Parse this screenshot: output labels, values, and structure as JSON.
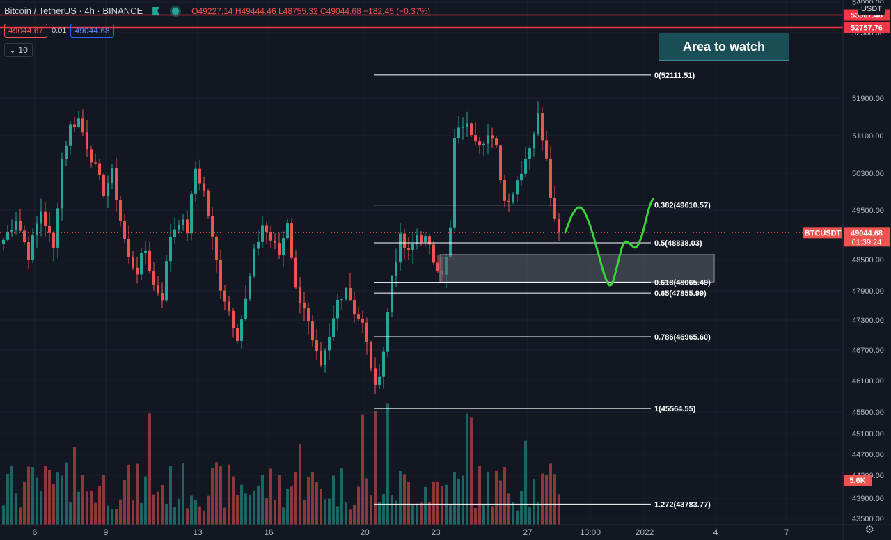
{
  "header": {
    "symbol": "Bitcoin / TetherUS · 4h · BINANCE",
    "open": "O49227.14",
    "high": "H49444.46",
    "low": "L48755.32",
    "close": "C49044.68",
    "change": "−182.45 (−0.37%)",
    "bid": "49044.67",
    "spread": "0.01",
    "ask": "49044.68",
    "indicator_value": "10",
    "currency": "USDT"
  },
  "annotation": {
    "area_label": "Area to watch"
  },
  "colors": {
    "up": "#26a69a",
    "down": "#ef5350",
    "background": "#131722",
    "grid": "#1e222d",
    "drawn_path": "#37d43a",
    "area_box": "#1b4f57"
  },
  "icons": {
    "settings": "gear-icon",
    "flag": "flag-icon",
    "status": "status-dot-icon"
  },
  "chart_data": {
    "type": "candlestick",
    "y_axis": {
      "range": [
        43500,
        54000
      ],
      "ticks": [
        "54000.00",
        "52500.00",
        "51900.00",
        "51100.00",
        "50300.00",
        "49500.00",
        "48500.00",
        "47900.00",
        "47300.00",
        "46700.00",
        "46100.00",
        "45500.00",
        "45100.00",
        "44700.00",
        "44300.00",
        "43900.00",
        "43500.00"
      ],
      "tick_values": [
        54000,
        52500,
        51900,
        51100,
        50300,
        49500,
        48500,
        47900,
        47300,
        46700,
        46100,
        45500,
        45100,
        44700,
        44300,
        43900,
        43500
      ]
    },
    "x_axis": {
      "ticks": [
        "6",
        "9",
        "13",
        "16",
        "20",
        "23",
        "27",
        "13:00",
        "2022",
        "4",
        "7"
      ],
      "tick_bars": [
        8,
        25,
        47,
        64,
        87,
        104,
        126,
        141,
        154,
        171,
        188
      ]
    },
    "current_price": {
      "label": "BTCUSDT",
      "value": 49044.68,
      "text": "49044.68",
      "countdown": "01:39:24"
    },
    "volume_label": "5.6K",
    "horizontal_lines": [
      {
        "value": 53367.48,
        "text": "53367.48"
      },
      {
        "value": 52757.76,
        "text": "52757.76"
      }
    ],
    "fib_levels": [
      {
        "label": "0(52111.51)",
        "value": 52111.51,
        "end_bar": 156
      },
      {
        "label": "0.382(49610.57)",
        "value": 49610.57,
        "end_bar": 156
      },
      {
        "label": "0.5(48838.03)",
        "value": 48838.03,
        "end_bar": 156
      },
      {
        "label": "0.618(48065.49)",
        "value": 48065.49,
        "end_bar": 156
      },
      {
        "label": "0.65(47855.99)",
        "value": 47855.99,
        "end_bar": 156
      },
      {
        "label": "0.786(46965.60)",
        "value": 46965.6,
        "end_bar": 156
      },
      {
        "label": "1(45564.55)",
        "value": 45564.55,
        "end_bar": 156
      },
      {
        "label": "1.272(43783.77)",
        "value": 43783.77,
        "end_bar": 156
      }
    ],
    "fib_start_bar": 90,
    "zone": {
      "from_bar": 105,
      "to_bar": 171,
      "top": 48600,
      "bottom": 48070
    },
    "projection": [
      {
        "bar": 135,
        "value": 49050
      },
      {
        "bar": 137,
        "value": 49500
      },
      {
        "bar": 139,
        "value": 49600
      },
      {
        "bar": 141,
        "value": 49200
      },
      {
        "bar": 143,
        "value": 48600
      },
      {
        "bar": 144.5,
        "value": 48150
      },
      {
        "bar": 146,
        "value": 47930
      },
      {
        "bar": 147.5,
        "value": 48400
      },
      {
        "bar": 149,
        "value": 48900
      },
      {
        "bar": 150.5,
        "value": 48820
      },
      {
        "bar": 152,
        "value": 48700
      },
      {
        "bar": 153.5,
        "value": 49000
      },
      {
        "bar": 155,
        "value": 49550
      },
      {
        "bar": 156,
        "value": 49750
      }
    ],
    "anchor_points": [
      [
        0,
        48900
      ],
      [
        3,
        49350
      ],
      [
        6,
        48600
      ],
      [
        9,
        49500
      ],
      [
        12,
        48700
      ],
      [
        14,
        50600
      ],
      [
        16,
        51300
      ],
      [
        18,
        51450
      ],
      [
        20,
        50900
      ],
      [
        22,
        50400
      ],
      [
        24,
        49900
      ],
      [
        26,
        50300
      ],
      [
        28,
        49300
      ],
      [
        30,
        48500
      ],
      [
        32,
        48300
      ],
      [
        34,
        48700
      ],
      [
        36,
        48000
      ],
      [
        38,
        47800
      ],
      [
        40,
        49000
      ],
      [
        42,
        49300
      ],
      [
        44,
        49100
      ],
      [
        46,
        50400
      ],
      [
        48,
        49900
      ],
      [
        50,
        48900
      ],
      [
        52,
        48000
      ],
      [
        54,
        47500
      ],
      [
        56,
        47000
      ],
      [
        58,
        47700
      ],
      [
        60,
        48600
      ],
      [
        62,
        49200
      ],
      [
        64,
        48900
      ],
      [
        66,
        48600
      ],
      [
        68,
        49300
      ],
      [
        70,
        47900
      ],
      [
        72,
        47600
      ],
      [
        74,
        46800
      ],
      [
        76,
        46300
      ],
      [
        78,
        46900
      ],
      [
        80,
        47700
      ],
      [
        82,
        48000
      ],
      [
        84,
        47500
      ],
      [
        86,
        47200
      ],
      [
        88,
        46400
      ],
      [
        89,
        45900
      ],
      [
        91,
        46700
      ],
      [
        93,
        48200
      ],
      [
        95,
        48900
      ],
      [
        97,
        48600
      ],
      [
        99,
        49000
      ],
      [
        101,
        48900
      ],
      [
        103,
        48500
      ],
      [
        105,
        48300
      ],
      [
        106,
        48500
      ],
      [
        107,
        49100
      ],
      [
        108,
        51000
      ],
      [
        110,
        51350
      ],
      [
        112,
        51200
      ],
      [
        114,
        51000
      ],
      [
        116,
        51100
      ],
      [
        118,
        50800
      ],
      [
        120,
        49700
      ],
      [
        122,
        49900
      ],
      [
        124,
        50400
      ],
      [
        126,
        50900
      ],
      [
        128,
        51500
      ],
      [
        130,
        50700
      ],
      [
        131,
        49900
      ],
      [
        132,
        49300
      ],
      [
        133,
        49044.68
      ]
    ],
    "visible_bars": 195
  }
}
